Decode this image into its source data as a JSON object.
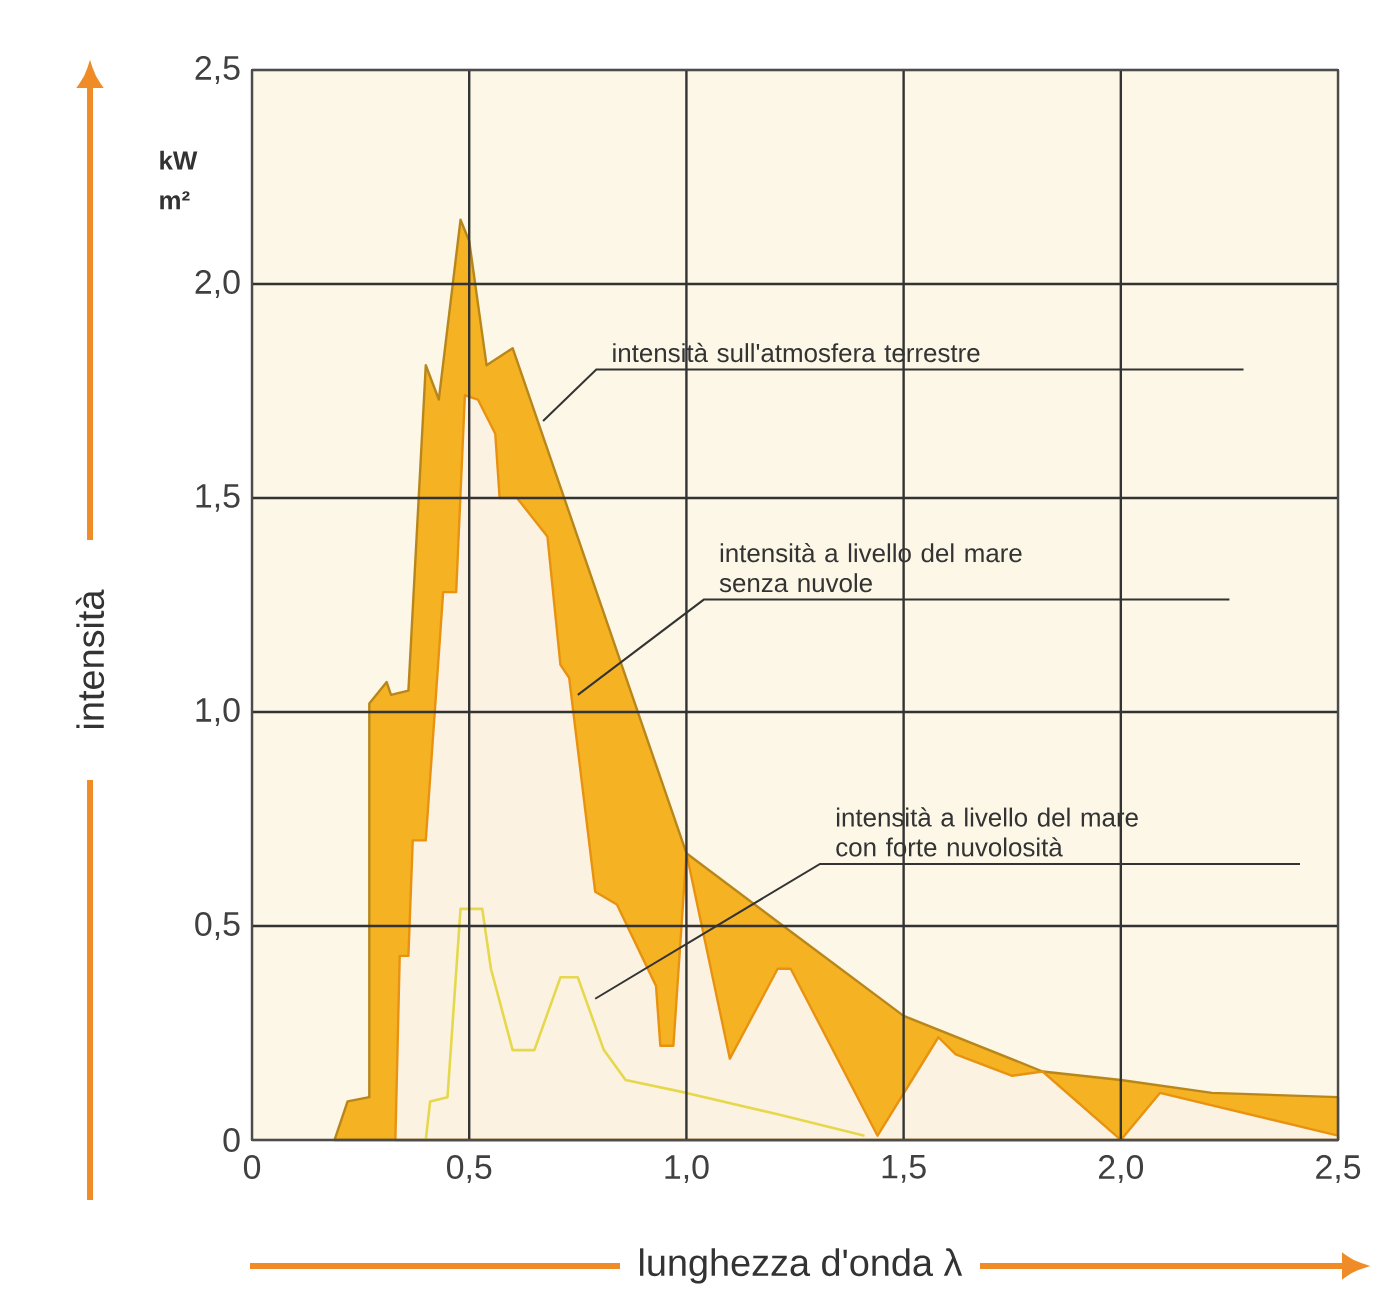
{
  "chart_data": {
    "type": "area",
    "xlabel": "lunghezza d'onda λ",
    "ylabel": "intensità",
    "xlim": [
      0,
      2.5
    ],
    "ylim": [
      0,
      2.5
    ],
    "xticks": [
      0,
      {
        "value": 0.5,
        "label": "0,5"
      },
      {
        "value": 1.0,
        "label": "1,0"
      },
      {
        "value": 1.5,
        "label": "1,5"
      },
      {
        "value": 2.0,
        "label": "2,0"
      },
      {
        "value": 2.5,
        "label": "2,5"
      }
    ],
    "yticks": [
      0,
      {
        "value": 0.5,
        "label": "0,5"
      },
      {
        "value": 1.0,
        "label": "1,0"
      },
      {
        "value": 1.5,
        "label": "1,5"
      },
      {
        "value": 2.0,
        "label": "2,0"
      },
      {
        "value": 2.5,
        "label": "2,5"
      }
    ],
    "grid": true,
    "series": [
      {
        "color": "#f5b324",
        "x": [
          0.19,
          0.22,
          0.27,
          0.27,
          0.31,
          0.32,
          0.36,
          0.4,
          0.43,
          0.48,
          0.5,
          0.54,
          0.6,
          1.0,
          1.21,
          1.5,
          1.82,
          2.0,
          2.21,
          2.5
        ],
        "values": [
          0,
          0.09,
          0.1,
          1.02,
          1.07,
          1.04,
          1.05,
          1.81,
          1.73,
          2.15,
          2.1,
          1.81,
          1.85,
          0.67,
          0.51,
          0.29,
          0.16,
          0.14,
          0.11,
          0.1
        ]
      },
      {
        "color": "#e8920f",
        "x": [
          0.33,
          0.34,
          0.36,
          0.37,
          0.4,
          0.44,
          0.47,
          0.49,
          0.52,
          0.56,
          0.57,
          0.61,
          0.68,
          0.71,
          0.73,
          0.79,
          0.84,
          0.93,
          0.94,
          0.97,
          1.0,
          1.1,
          1.21,
          1.24,
          1.44,
          1.58,
          1.62,
          1.75,
          1.82,
          2.0,
          2.09,
          2.5
        ],
        "values": [
          0,
          0.43,
          0.43,
          0.7,
          0.7,
          1.28,
          1.28,
          1.74,
          1.73,
          1.65,
          1.5,
          1.5,
          1.41,
          1.11,
          1.08,
          0.58,
          0.55,
          0.36,
          0.22,
          0.22,
          0.67,
          0.19,
          0.4,
          0.4,
          0.01,
          0.24,
          0.2,
          0.15,
          0.16,
          0,
          0.11,
          0.01
        ]
      },
      {
        "type": "line",
        "color": "#e6d84c",
        "x": [
          0.4,
          0.41,
          0.45,
          0.48,
          0.53,
          0.55,
          0.6,
          0.65,
          0.71,
          0.75,
          0.81,
          0.86,
          1.0,
          1.21,
          1.41
        ],
        "values": [
          0,
          0.09,
          0.1,
          0.54,
          0.54,
          0.4,
          0.21,
          0.21,
          0.38,
          0.38,
          0.21,
          0.14,
          0.11,
          0.06,
          0.01
        ]
      }
    ],
    "annotations": [
      "kW m²",
      {
        "text": "intensità sull'atmosfera terrestre",
        "x": 0.67,
        "y": 1.68
      },
      {
        "text": "intensità a livello del mare senza nuvole",
        "x": 0.75,
        "y": 1.04
      },
      {
        "text": "intensità a livello del mare con forte nuvolosità",
        "x": 0.79,
        "y": 0.33
      }
    ]
  }
}
